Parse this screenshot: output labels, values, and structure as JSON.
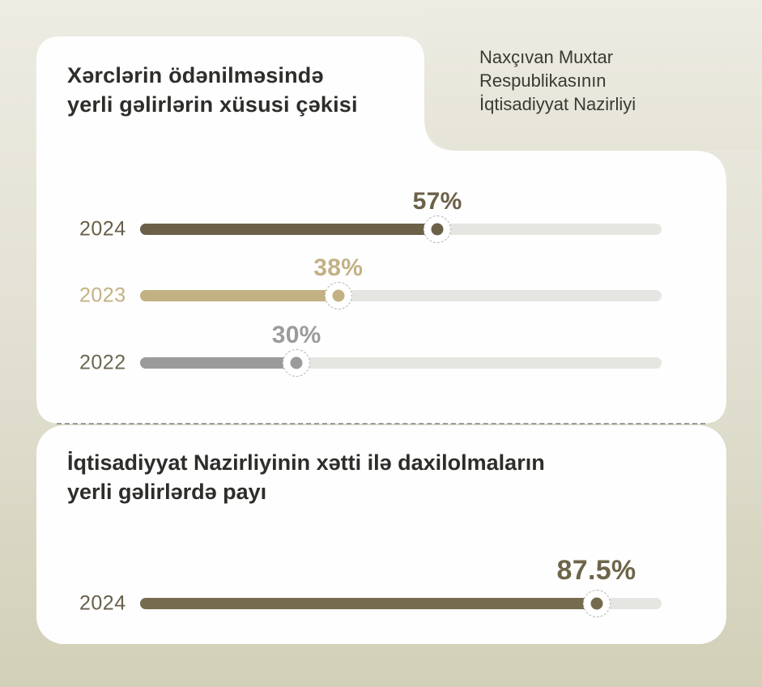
{
  "org": {
    "lines": [
      "Naxçıvan Muxtar",
      "Respublikasının",
      "İqtisadiyyat Nazirliyi"
    ]
  },
  "sections": [
    {
      "title": "Xərclərin ödənilməsində yerli gəlirlərin xüsusi çəkisi",
      "title_lines": [
        "Xərclərin ödənilməsində",
        "yerli gəlirlərin xüsusi çəkisi"
      ]
    },
    {
      "title": "İqtisadiyyat Nazirliyinin xətti ilə daxilolmaların yerli gəlirlərdə payı",
      "title_lines": [
        "İqtisadiyyat Nazirliyinin xətti ilə daxilolmaların",
        "yerli gəlirlərdə payı"
      ]
    }
  ],
  "chart_data": [
    {
      "type": "bar",
      "orientation": "horizontal",
      "title": "Xərclərin ödənilməsində yerli gəlirlərin xüsusi çəkisi",
      "unit": "%",
      "xlim": [
        0,
        100
      ],
      "categories": [
        "2024",
        "2023",
        "2022"
      ],
      "values": [
        57,
        38,
        30
      ],
      "value_labels": [
        "57%",
        "38%",
        "30%"
      ],
      "bar_colors": [
        "#6B6148",
        "#C2B183",
        "#9B9B9B"
      ],
      "value_label_colors": [
        "#6B6148",
        "#C2B183",
        "#9B9B9B"
      ],
      "category_label_colors": [
        "#67604A",
        "#C2B183",
        "#6E6750"
      ],
      "grid": false,
      "legend": false
    },
    {
      "type": "bar",
      "orientation": "horizontal",
      "title": "İqtisadiyyat Nazirliyinin xətti ilə daxilolmaların yerli gəlirlərdə payı",
      "unit": "%",
      "xlim": [
        0,
        100
      ],
      "categories": [
        "2024"
      ],
      "values": [
        87.5
      ],
      "value_labels": [
        "87.5%"
      ],
      "bar_colors": [
        "#756B4F"
      ],
      "value_label_colors": [
        "#6E6549"
      ],
      "category_label_colors": [
        "#67604A"
      ],
      "grid": false,
      "legend": false
    }
  ],
  "colors": {
    "page_bg_top": "#EDECE3",
    "page_bg_bottom": "#D2D0B8",
    "card_bg": "#FEFEFE",
    "track": "#E5E5E2",
    "divider": "#9C9C96",
    "title_text": "#2E2D2A",
    "org_text": "#3A3933"
  }
}
